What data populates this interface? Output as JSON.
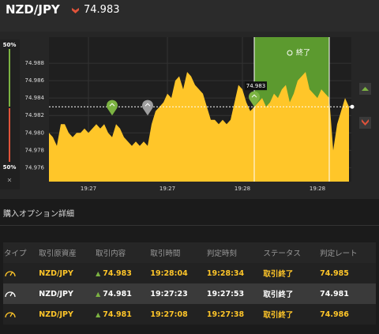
{
  "header": {
    "symbol": "NZD/JPY",
    "price": "74.983"
  },
  "side_panel": {
    "top_label": "50%",
    "bottom_label": "50%",
    "close": "×"
  },
  "chart_data": {
    "type": "area",
    "color": "#ffc629",
    "values": [
      74.98,
      74.9795,
      74.9785,
      74.981,
      74.981,
      74.98,
      74.9795,
      74.98,
      74.98,
      74.9805,
      74.98,
      74.9805,
      74.981,
      74.9805,
      74.981,
      74.98,
      74.9795,
      74.981,
      74.9805,
      74.9795,
      74.979,
      74.9785,
      74.979,
      74.9785,
      74.979,
      74.9785,
      74.981,
      74.9825,
      74.983,
      74.9835,
      74.9845,
      74.984,
      74.986,
      74.9865,
      74.985,
      74.987,
      74.9865,
      74.9855,
      74.985,
      74.9845,
      74.983,
      74.9815,
      74.9815,
      74.981,
      74.9815,
      74.981,
      74.9815,
      74.9835,
      74.9855,
      74.985,
      74.9835,
      74.9825,
      74.983,
      74.9835,
      74.984,
      74.983,
      74.9835,
      74.9845,
      74.984,
      74.985,
      74.9855,
      74.9835,
      74.9845,
      74.986,
      74.9865,
      74.987,
      74.985,
      74.9845,
      74.984,
      74.985,
      74.9845,
      74.984,
      74.978,
      74.981,
      74.9825,
      74.984,
      74.983
    ],
    "xlim": [
      0,
      76
    ],
    "xticks": [
      {
        "value": 10,
        "label": "19:27"
      },
      {
        "value": 30,
        "label": "19:27"
      },
      {
        "value": 49,
        "label": "19:28"
      },
      {
        "value": 68,
        "label": "19:28"
      }
    ],
    "ylim": [
      74.9744,
      74.991
    ],
    "yticks": [
      {
        "value": 74.976,
        "label": "74.976"
      },
      {
        "value": 74.978,
        "label": "74.978"
      },
      {
        "value": 74.98,
        "label": "74.980"
      },
      {
        "value": 74.982,
        "label": "74.982"
      },
      {
        "value": 74.984,
        "label": "74.984"
      },
      {
        "value": 74.986,
        "label": "74.986"
      },
      {
        "value": 74.988,
        "label": "74.988"
      }
    ],
    "grid": true,
    "reference_line": 74.983,
    "expiry_zone": {
      "x_start": 52,
      "x_end": 71,
      "color": "#5c9a2f",
      "label": "終了"
    },
    "markers": [
      {
        "x": 16,
        "y": 74.982,
        "color": "#7cb342"
      },
      {
        "x": 25,
        "y": 74.982,
        "color": "#9e9e9e"
      },
      {
        "x": 52,
        "y": 74.983,
        "color": "#7cb342",
        "label": "74.983"
      }
    ]
  },
  "section_title": "購入オプション詳細",
  "table": {
    "columns": [
      "タイプ",
      "取引原資産",
      "取引内容",
      "取引時間",
      "判定時刻",
      "ステータス",
      "判定レート"
    ],
    "rows": [
      [
        "NZD/JPY",
        "74.983",
        "19:28:04",
        "19:28:34",
        "取引終了",
        "74.985"
      ],
      [
        "NZD/JPY",
        "74.981",
        "19:27:23",
        "19:27:53",
        "取引終了",
        "74.981"
      ],
      [
        "NZD/JPY",
        "74.981",
        "19:27:08",
        "19:27:38",
        "取引終了",
        "74.986"
      ]
    ]
  }
}
